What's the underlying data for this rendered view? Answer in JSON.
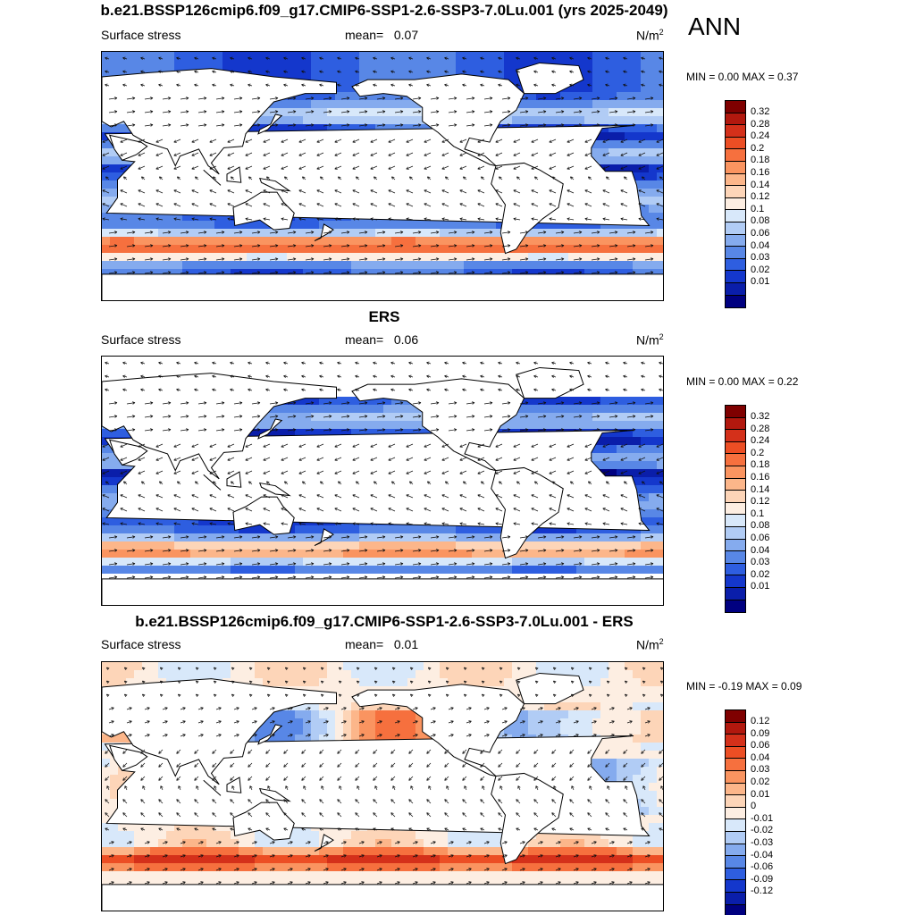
{
  "season": "ANN",
  "panels": [
    {
      "title": "b.e21.BSSP126cmip6.f09_g17.CMIP6-SSP1-2.6-SSP3-7.0Lu.001 (yrs 2025-2049)",
      "left_label": "Surface stress",
      "mean_label": "mean=",
      "mean_value": "0.07",
      "units": "N/m",
      "units_sup": "2",
      "minmax": "MIN =   0.00 MAX =   0.37",
      "colorbar_ticks": [
        "0.32",
        "0.28",
        "0.24",
        "0.2",
        "0.18",
        "0.16",
        "0.14",
        "0.12",
        "0.1",
        "0.08",
        "0.06",
        "0.04",
        "0.03",
        "0.02",
        "0.01"
      ],
      "field": "model"
    },
    {
      "title": "ERS",
      "left_label": "Surface stress",
      "mean_label": "mean=",
      "mean_value": "0.06",
      "units": "N/m",
      "units_sup": "2",
      "minmax": "MIN =   0.00 MAX =   0.22",
      "colorbar_ticks": [
        "0.32",
        "0.28",
        "0.24",
        "0.2",
        "0.18",
        "0.16",
        "0.14",
        "0.12",
        "0.1",
        "0.08",
        "0.06",
        "0.04",
        "0.03",
        "0.02",
        "0.01"
      ],
      "field": "obs"
    },
    {
      "title": "b.e21.BSSP126cmip6.f09_g17.CMIP6-SSP1-2.6-SSP3-7.0Lu.001 - ERS",
      "left_label": "Surface stress",
      "mean_label": "mean=",
      "mean_value": "0.01",
      "units": "N/m",
      "units_sup": "2",
      "minmax": "MIN =  -0.19 MAX =   0.09",
      "colorbar_ticks": [
        "0.12",
        "0.09",
        "0.06",
        "0.04",
        "0.03",
        "0.02",
        "0.01",
        "0",
        "-0.01",
        "-0.02",
        "-0.03",
        "-0.04",
        "-0.06",
        "-0.09",
        "-0.12"
      ],
      "field": "diff"
    }
  ],
  "colorbar_colors": [
    "#7f0000",
    "#b2180e",
    "#d4301a",
    "#ec4e24",
    "#f6703e",
    "#fa9460",
    "#fcb68a",
    "#fdd5b8",
    "#fdeee2",
    "#d8e8fa",
    "#b1ccf5",
    "#85abee",
    "#5887e6",
    "#2e5ee0",
    "#1437cc",
    "#0a1eaa",
    "#000080"
  ]
}
